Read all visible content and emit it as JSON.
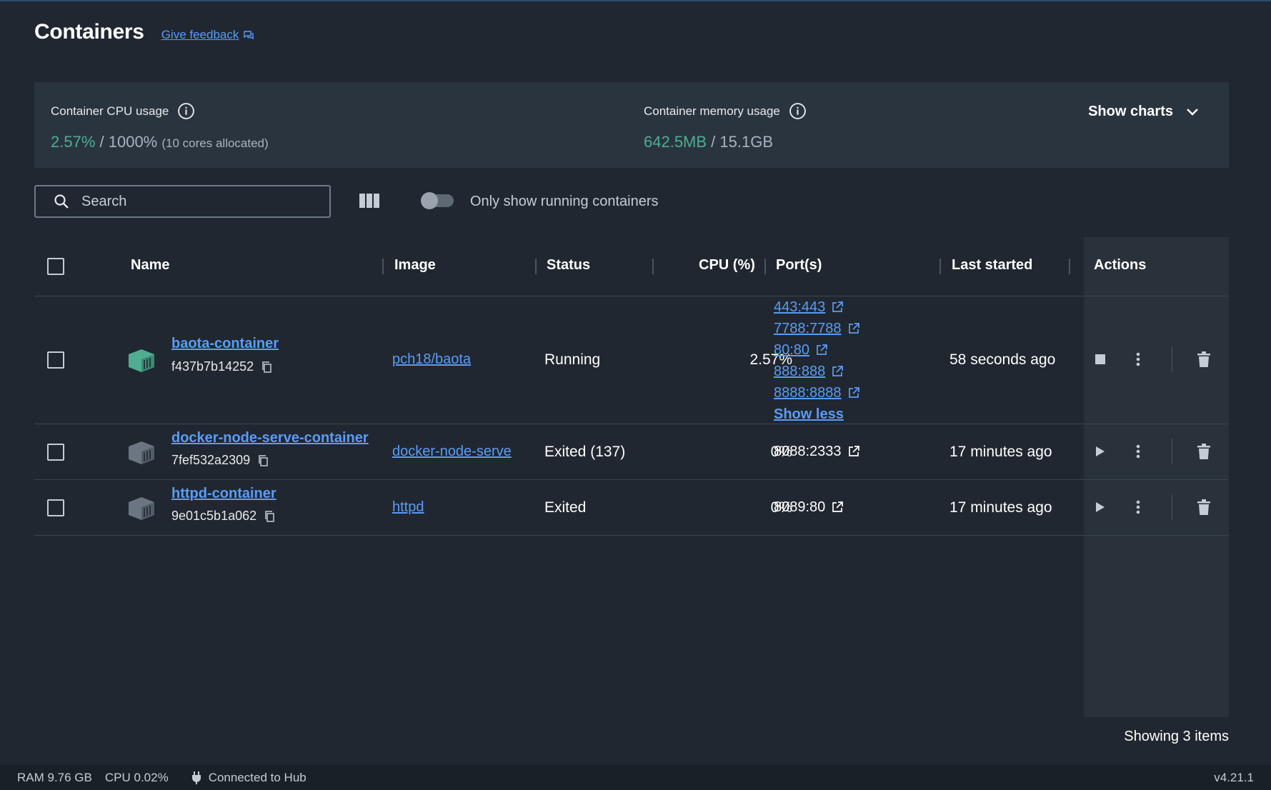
{
  "header": {
    "title": "Containers",
    "feedback_label": "Give feedback"
  },
  "stats": {
    "cpu_label": "Container CPU usage",
    "cpu_used": "2.57%",
    "cpu_sep": " / ",
    "cpu_total": "1000%",
    "cpu_note": "(10 cores allocated)",
    "mem_label": "Container memory usage",
    "mem_used": "642.5MB",
    "mem_sep": " / ",
    "mem_total": "15.1GB",
    "show_charts_label": "Show charts"
  },
  "toolbar": {
    "search_placeholder": "Search",
    "only_running_label": "Only show running containers",
    "only_running_on": false
  },
  "table": {
    "columns": [
      "Name",
      "Image",
      "Status",
      "CPU (%)",
      "Port(s)",
      "Last started",
      "Actions"
    ],
    "rows": [
      {
        "name": "baota-container",
        "id": "f437b7b14252",
        "image": "pch18/baota",
        "status": "Running",
        "cpu": "2.57%",
        "ports": [
          "443:443",
          "7788:7788",
          "80:80",
          "888:888",
          "8888:8888"
        ],
        "ports_toggle": "Show less",
        "last_started": "58 seconds ago",
        "running": true
      },
      {
        "name": "docker-node-serve-container",
        "id": "7fef532a2309",
        "image": "docker-node-serve",
        "status": "Exited (137)",
        "cpu": "0%",
        "ports": [
          "8088:2333"
        ],
        "last_started": "17 minutes ago",
        "running": false
      },
      {
        "name": "httpd-container",
        "id": "9e01c5b1a062",
        "image": "httpd",
        "status": "Exited",
        "cpu": "0%",
        "ports": [
          "8089:80"
        ],
        "last_started": "17 minutes ago",
        "running": false
      }
    ],
    "showing_text": "Showing 3 items"
  },
  "footer": {
    "ram": "RAM 9.76 GB",
    "cpu": "CPU 0.02%",
    "hub": "Connected to Hub",
    "version": "v4.21.1"
  },
  "colors": {
    "background": "#202730",
    "panel": "#2a343f",
    "accent_green": "#4fae91",
    "link_blue": "#5b9cf5",
    "running_icon": "#4fae91",
    "stopped_icon": "#6b7682"
  }
}
